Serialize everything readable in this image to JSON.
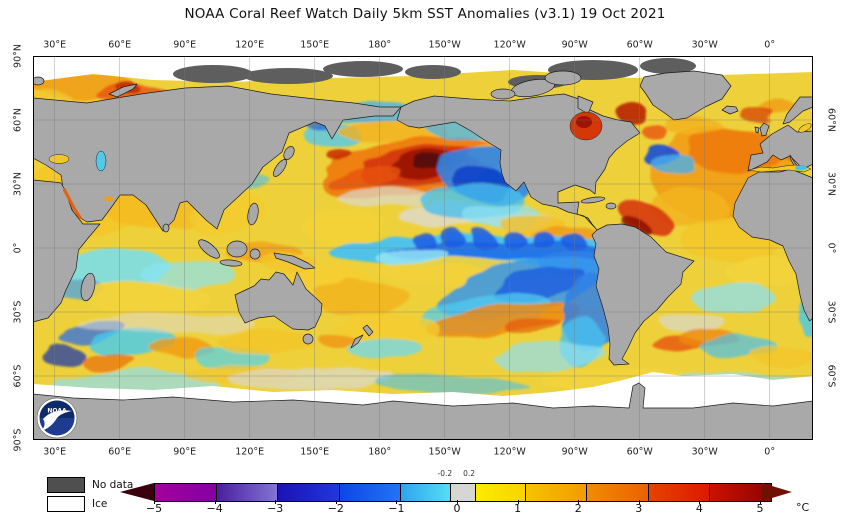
{
  "title": "NOAA Coral Reef Watch Daily 5km SST Anomalies  (v3.1)   19 Oct 2021",
  "axes": {
    "top": [
      "30°E",
      "60°E",
      "90°E",
      "120°E",
      "150°E",
      "180°",
      "150°W",
      "120°W",
      "90°W",
      "60°W",
      "30°W",
      "0°"
    ],
    "bottom": [
      "30°E",
      "60°E",
      "90°E",
      "120°E",
      "150°E",
      "180°",
      "150°W",
      "120°W",
      "90°W",
      "60°W",
      "30°W",
      "0°"
    ],
    "left": [
      "90°N",
      "60°N",
      "30°N",
      "0°",
      "30°S",
      "60°S",
      "90°S"
    ],
    "right": [
      "60°N",
      "30°N",
      "0°",
      "30°S",
      "60°S"
    ]
  },
  "legend": {
    "no_data": "No data",
    "ice": "Ice",
    "no_data_color": "#4f4f4f",
    "ice_color": "#ffffff"
  },
  "logo": {
    "text": "NOAA"
  },
  "colorbar": {
    "unit": "°C",
    "ticks": [
      -5,
      -4,
      -3,
      -2,
      -1,
      0,
      1,
      2,
      3,
      4,
      5
    ],
    "inner_ticks": [
      -0.2,
      0.2
    ],
    "left_arrow_color": "#3a000f",
    "right_arrow_color": "#701203",
    "segments": [
      {
        "from": -5.0,
        "to": -4.0,
        "c1": "#a4009c",
        "c2": "#8300a4"
      },
      {
        "from": -4.0,
        "to": -3.0,
        "c1": "#4a1fa0",
        "c2": "#8274d4"
      },
      {
        "from": -3.0,
        "to": -2.0,
        "c1": "#1d12b4",
        "c2": "#2037de"
      },
      {
        "from": -2.0,
        "to": -1.0,
        "c1": "#0d47e8",
        "c2": "#2373f4"
      },
      {
        "from": -1.0,
        "to": -0.2,
        "c1": "#2fa4ee",
        "c2": "#55ddf4"
      },
      {
        "from": -0.2,
        "to": 0.2,
        "c1": "#d6d6d3",
        "c2": "#d6d6d3"
      },
      {
        "from": 0.2,
        "to": 1.0,
        "c1": "#fceb00",
        "c2": "#f8d400"
      },
      {
        "from": 1.0,
        "to": 2.0,
        "c1": "#f6c300",
        "c2": "#f29b00"
      },
      {
        "from": 2.0,
        "to": 3.0,
        "c1": "#f18c00",
        "c2": "#ec6000"
      },
      {
        "from": 3.0,
        "to": 4.0,
        "c1": "#e74300",
        "c2": "#dc1900"
      },
      {
        "from": 4.0,
        "to": 5.0,
        "c1": "#cd1000",
        "c2": "#8e0400"
      }
    ]
  },
  "map": {
    "land_color": "#a9a9a9",
    "no_data_color": "#5e5e5e",
    "ice_color": "#ffffff",
    "ocean_base": "#eed13a",
    "features": [
      [
        60,
        140,
        70,
        40,
        0,
        "#f5c527",
        0.9
      ],
      [
        40,
        148,
        22,
        10,
        0,
        "#ef8812",
        0.8
      ],
      [
        120,
        152,
        48,
        22,
        0,
        "#f4bc22",
        0.85
      ],
      [
        185,
        165,
        30,
        14,
        0,
        "#f2cb30",
        0.85
      ],
      [
        80,
        212,
        58,
        18,
        0,
        "#74dff2",
        0.85
      ],
      [
        155,
        218,
        48,
        13,
        0,
        "#8ce4f4",
        0.7
      ],
      [
        45,
        235,
        28,
        11,
        0,
        "#3f9ff0",
        0.7
      ],
      [
        115,
        242,
        60,
        16,
        0,
        "#f3d43c",
        0.9
      ],
      [
        60,
        277,
        34,
        11,
        -10,
        "#2e6fe6",
        0.75
      ],
      [
        100,
        287,
        44,
        12,
        -5,
        "#45ccf0",
        0.8
      ],
      [
        148,
        292,
        34,
        9,
        5,
        "#f09a14",
        0.8
      ],
      [
        200,
        302,
        38,
        11,
        0,
        "#4fd2f0",
        0.7
      ],
      [
        232,
        286,
        48,
        13,
        0,
        "#f2c62c",
        0.85
      ],
      [
        30,
        300,
        22,
        9,
        0,
        "#0b2fb0",
        0.7
      ],
      [
        76,
        306,
        28,
        9,
        0,
        "#e85a0a",
        0.6
      ],
      [
        290,
        232,
        55,
        22,
        0,
        "#f6ce30",
        0.9
      ],
      [
        133,
        268,
        90,
        10,
        0,
        "#dddbd2",
        0.55
      ],
      [
        340,
        56,
        48,
        11,
        0,
        "#49b4ee",
        0.8
      ],
      [
        300,
        80,
        28,
        14,
        0,
        "#52c8f0",
        0.8
      ],
      [
        288,
        66,
        16,
        9,
        0,
        "#1f63e0",
        0.7
      ],
      [
        360,
        76,
        55,
        11,
        0,
        "#f2b01e",
        0.8
      ],
      [
        378,
        112,
        92,
        28,
        -10,
        "#ee7c0c",
        0.95
      ],
      [
        388,
        109,
        62,
        19,
        -10,
        "#d63708",
        0.95
      ],
      [
        395,
        107,
        38,
        12,
        -10,
        "#9c1404",
        0.95
      ],
      [
        399,
        106,
        19,
        6,
        -10,
        "#550a08",
        0.95
      ],
      [
        330,
        121,
        38,
        9,
        -10,
        "#e8540a",
        0.8
      ],
      [
        310,
        102,
        13,
        6,
        0,
        "#c42a06",
        0.85
      ],
      [
        430,
        70,
        38,
        13,
        0,
        "#49b4ee",
        0.75
      ],
      [
        462,
        96,
        28,
        11,
        0,
        "#f0b81e",
        0.8
      ],
      [
        352,
        142,
        48,
        10,
        0,
        "#dcdad2",
        0.7
      ],
      [
        420,
        160,
        55,
        13,
        0,
        "#dddbd2",
        0.8
      ],
      [
        480,
        165,
        42,
        9,
        0,
        "#d8d8d0",
        0.7
      ],
      [
        210,
        150,
        24,
        13,
        0,
        "#f4cc30",
        0.85
      ],
      [
        220,
        126,
        18,
        9,
        0,
        "#49c0ee",
        0.6
      ],
      [
        230,
        196,
        38,
        11,
        0,
        "#f0a018",
        0.8
      ],
      [
        256,
        206,
        28,
        9,
        0,
        "#f2c62c",
        0.8
      ],
      [
        310,
        170,
        40,
        18,
        0,
        "#f4d338",
        0.9
      ],
      [
        455,
        118,
        52,
        28,
        10,
        "#2f86ea",
        0.9
      ],
      [
        447,
        127,
        30,
        17,
        10,
        "#0d3ec8",
        0.85
      ],
      [
        440,
        146,
        52,
        20,
        0,
        "#48c0ee",
        0.8
      ],
      [
        470,
        161,
        38,
        13,
        0,
        "#8ee2f2",
        0.7
      ],
      [
        502,
        171,
        32,
        11,
        0,
        "#f2c028",
        0.8
      ],
      [
        532,
        181,
        36,
        9,
        0,
        "#ef9212",
        0.7
      ],
      [
        455,
        196,
        160,
        17,
        0,
        "#49c2f0",
        0.95
      ],
      [
        470,
        194,
        120,
        10,
        0,
        "#1f6fe8",
        0.9
      ],
      [
        390,
        184,
        12,
        8,
        0,
        "#1b5ae4",
        0.85
      ],
      [
        420,
        183,
        12,
        8,
        0,
        "#1b5ae4",
        0.85
      ],
      [
        450,
        184,
        12,
        8,
        0,
        "#1b5ae4",
        0.85
      ],
      [
        480,
        183,
        12,
        8,
        0,
        "#1b5ae4",
        0.85
      ],
      [
        510,
        184,
        12,
        8,
        0,
        "#1b5ae4",
        0.85
      ],
      [
        540,
        185,
        12,
        8,
        0,
        "#1b5ae4",
        0.85
      ],
      [
        380,
        201,
        38,
        11,
        0,
        "#9ae8f4",
        0.8
      ],
      [
        548,
        206,
        42,
        13,
        0,
        "#2f80e8",
        0.85
      ],
      [
        430,
        216,
        85,
        12,
        0,
        "#f2d23a",
        0.9
      ],
      [
        490,
        232,
        88,
        26,
        -12,
        "#3596ec",
        0.85
      ],
      [
        506,
        228,
        48,
        15,
        -12,
        "#1b5ce0",
        0.8
      ],
      [
        452,
        256,
        66,
        18,
        -8,
        "#52ccf0",
        0.75
      ],
      [
        470,
        263,
        78,
        13,
        -8,
        "#ef8a10",
        0.85
      ],
      [
        500,
        269,
        28,
        7,
        -8,
        "#e04e08",
        0.6
      ],
      [
        556,
        256,
        26,
        38,
        12,
        "#2f80e8",
        0.85
      ],
      [
        548,
        286,
        20,
        26,
        8,
        "#49c0ee",
        0.8
      ],
      [
        518,
        301,
        55,
        14,
        -5,
        "#8ee0f2",
        0.7
      ],
      [
        330,
        242,
        48,
        18,
        0,
        "#f2b41e",
        0.85
      ],
      [
        352,
        272,
        55,
        14,
        0,
        "#f4cc30",
        0.8
      ],
      [
        350,
        291,
        38,
        11,
        0,
        "#6fd8f2",
        0.75
      ],
      [
        302,
        282,
        18,
        7,
        0,
        "#ef8a10",
        0.7
      ],
      [
        690,
        118,
        72,
        48,
        0,
        "#f0a018",
        0.95
      ],
      [
        702,
        94,
        48,
        23,
        0,
        "#ee7c0c",
        0.9
      ],
      [
        656,
        150,
        38,
        18,
        0,
        "#f2b41e",
        0.85
      ],
      [
        612,
        160,
        28,
        13,
        20,
        "#d63708",
        0.9
      ],
      [
        602,
        168,
        15,
        6,
        20,
        "#8c1003",
        0.85
      ],
      [
        628,
        100,
        18,
        12,
        0,
        "#1b4ed8",
        0.9
      ],
      [
        641,
        108,
        22,
        11,
        0,
        "#49b0ec",
        0.8
      ],
      [
        700,
        182,
        55,
        23,
        0,
        "#f2c828",
        0.9
      ],
      [
        732,
        216,
        38,
        16,
        0,
        "#f4d43a",
        0.9
      ],
      [
        700,
        242,
        42,
        14,
        0,
        "#8ee0f2",
        0.75
      ],
      [
        660,
        266,
        32,
        11,
        0,
        "#d8d8d0",
        0.7
      ],
      [
        646,
        289,
        26,
        9,
        0,
        "#e85a0a",
        0.85
      ],
      [
        676,
        283,
        30,
        9,
        0,
        "#ef8a10",
        0.8
      ],
      [
        706,
        291,
        38,
        13,
        0,
        "#49c0ee",
        0.7
      ],
      [
        775,
        256,
        11,
        24,
        0,
        "#49c8ee",
        0.8
      ],
      [
        752,
        300,
        32,
        11,
        0,
        "#f2c62c",
        0.8
      ],
      [
        600,
        58,
        15,
        11,
        0,
        "#b82205",
        0.9
      ],
      [
        622,
        76,
        13,
        7,
        0,
        "#e8540a",
        0.8
      ],
      [
        745,
        52,
        18,
        9,
        0,
        "#f0a018",
        0.85
      ],
      [
        660,
        70,
        28,
        11,
        0,
        "#f2b41e",
        0.85
      ],
      [
        762,
        95,
        18,
        9,
        0,
        "#ee7c0c",
        0.8
      ],
      [
        726,
        60,
        18,
        7,
        0,
        "#d63708",
        0.7
      ],
      [
        100,
        326,
        85,
        11,
        0,
        "#8ee0f2",
        0.7
      ],
      [
        205,
        318,
        55,
        9,
        0,
        "#f2c62c",
        0.7
      ],
      [
        280,
        323,
        85,
        11,
        0,
        "#d8d8d2",
        0.7
      ],
      [
        420,
        329,
        75,
        9,
        0,
        "#49c0ee",
        0.6
      ],
      [
        580,
        323,
        75,
        11,
        0,
        "#f4d43a",
        0.7
      ],
      [
        700,
        326,
        65,
        9,
        0,
        "#8ee0f2",
        0.7
      ],
      [
        50,
        30,
        52,
        13,
        0,
        "#f0a018",
        0.9
      ],
      [
        100,
        38,
        38,
        9,
        0,
        "#e8540a",
        0.8
      ],
      [
        95,
        32,
        11,
        5,
        0,
        "#c22806",
        0.85
      ],
      [
        20,
        46,
        22,
        9,
        0,
        "#f2c62c",
        0.8
      ]
    ],
    "no_data_patches": [
      [
        180,
        18,
        40,
        9
      ],
      [
        255,
        20,
        45,
        8
      ],
      [
        330,
        13,
        40,
        8
      ],
      [
        400,
        16,
        28,
        7
      ],
      [
        560,
        14,
        45,
        10
      ],
      [
        635,
        10,
        28,
        8
      ],
      [
        505,
        26,
        30,
        7
      ]
    ]
  }
}
